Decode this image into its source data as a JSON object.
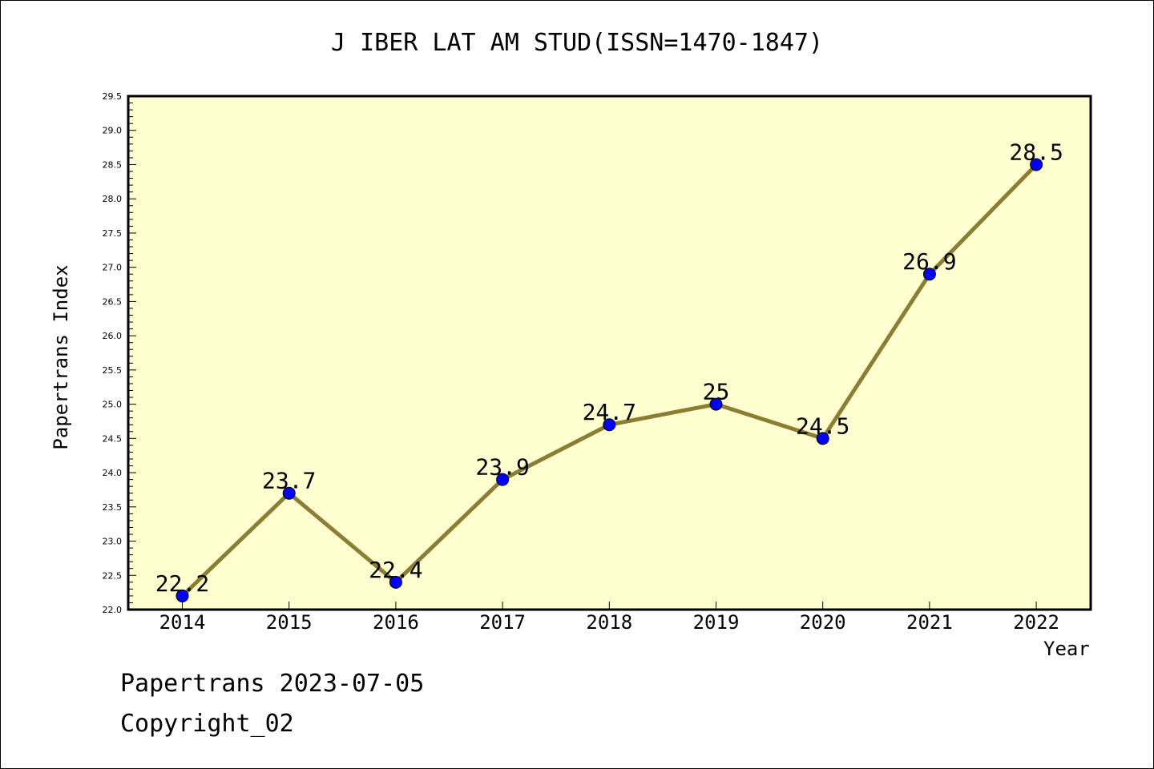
{
  "footer": {
    "line1": "Papertrans 2023-07-05",
    "line2": "Copyright_02"
  },
  "colors": {
    "plot_background": "#ffffd0",
    "line": "#8b7d32",
    "marker": "#0000ff",
    "frame": "#000000"
  },
  "chart_data": {
    "type": "line",
    "title": "J IBER LAT AM STUD(ISSN=1470-1847)",
    "xlabel": "Year",
    "ylabel": "Papertrans Index",
    "categories": [
      "2014",
      "2015",
      "2016",
      "2017",
      "2018",
      "2019",
      "2020",
      "2021",
      "2022"
    ],
    "series": [
      {
        "values": [
          22.2,
          23.7,
          22.4,
          23.9,
          24.7,
          25,
          24.5,
          26.9,
          28.5
        ],
        "data_labels": [
          "22.2",
          "23.7",
          "22.4",
          "23.9",
          "24.7",
          "25",
          "24.5",
          "26.9",
          "28.5"
        ]
      }
    ],
    "ylim": [
      22.0,
      29.5
    ],
    "yticks": [
      "22.0",
      "22.5",
      "23.0",
      "23.5",
      "24.0",
      "24.5",
      "25.0",
      "25.5",
      "26.0",
      "26.5",
      "27.0",
      "27.5",
      "28.0",
      "28.5",
      "29.0",
      "29.5"
    ],
    "grid": false,
    "legend": "none"
  }
}
